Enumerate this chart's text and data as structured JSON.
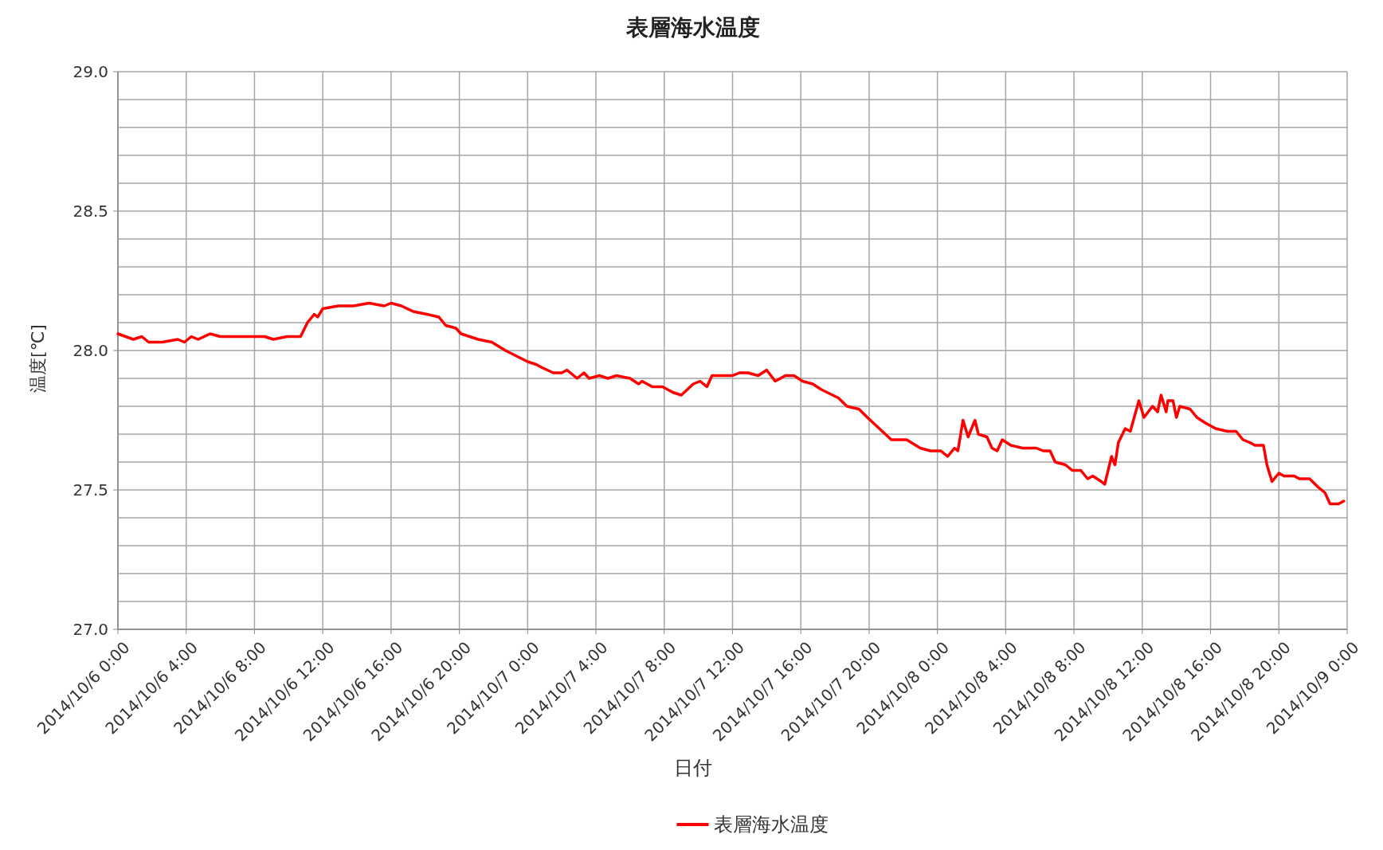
{
  "chart_data": {
    "type": "line",
    "title": "表層海水温度",
    "xlabel": "日付",
    "ylabel": "温度[℃]",
    "legend": "bottom",
    "grid": true,
    "marker": "none",
    "line_style": "solid",
    "xlim": [
      "2014-10-06T00:00",
      "2014-10-09T00:00"
    ],
    "xticks": [
      {
        "value": "2014-10-06T00:00",
        "label": "2014/10/6 0:00"
      },
      {
        "value": "2014-10-06T04:00",
        "label": "2014/10/6 4:00"
      },
      {
        "value": "2014-10-06T08:00",
        "label": "2014/10/6 8:00"
      },
      {
        "value": "2014-10-06T12:00",
        "label": "2014/10/6 12:00"
      },
      {
        "value": "2014-10-06T16:00",
        "label": "2014/10/6 16:00"
      },
      {
        "value": "2014-10-06T20:00",
        "label": "2014/10/6 20:00"
      },
      {
        "value": "2014-10-07T00:00",
        "label": "2014/10/7 0:00"
      },
      {
        "value": "2014-10-07T04:00",
        "label": "2014/10/7 4:00"
      },
      {
        "value": "2014-10-07T08:00",
        "label": "2014/10/7 8:00"
      },
      {
        "value": "2014-10-07T12:00",
        "label": "2014/10/7 12:00"
      },
      {
        "value": "2014-10-07T16:00",
        "label": "2014/10/7 16:00"
      },
      {
        "value": "2014-10-07T20:00",
        "label": "2014/10/7 20:00"
      },
      {
        "value": "2014-10-08T00:00",
        "label": "2014/10/8 0:00"
      },
      {
        "value": "2014-10-08T04:00",
        "label": "2014/10/8 4:00"
      },
      {
        "value": "2014-10-08T08:00",
        "label": "2014/10/8 8:00"
      },
      {
        "value": "2014-10-08T12:00",
        "label": "2014/10/8 12:00"
      },
      {
        "value": "2014-10-08T16:00",
        "label": "2014/10/8 16:00"
      },
      {
        "value": "2014-10-08T20:00",
        "label": "2014/10/8 20:00"
      },
      {
        "value": "2014-10-09T00:00",
        "label": "2014/10/9 0:00"
      }
    ],
    "ylim": [
      27.0,
      29.0
    ],
    "yticks": [
      {
        "value": 27.0,
        "label": "27.0"
      },
      {
        "value": 27.1,
        "label": null
      },
      {
        "value": 27.2,
        "label": null
      },
      {
        "value": 27.3,
        "label": null
      },
      {
        "value": 27.4,
        "label": null
      },
      {
        "value": 27.5,
        "label": "27.5"
      },
      {
        "value": 27.6,
        "label": null
      },
      {
        "value": 27.7,
        "label": null
      },
      {
        "value": 27.8,
        "label": null
      },
      {
        "value": 27.9,
        "label": null
      },
      {
        "value": 28.0,
        "label": "28.0"
      },
      {
        "value": 28.1,
        "label": null
      },
      {
        "value": 28.2,
        "label": null
      },
      {
        "value": 28.3,
        "label": null
      },
      {
        "value": 28.4,
        "label": null
      },
      {
        "value": 28.5,
        "label": "28.5"
      },
      {
        "value": 28.6,
        "label": null
      },
      {
        "value": 28.7,
        "label": null
      },
      {
        "value": 28.8,
        "label": null
      },
      {
        "value": 28.9,
        "label": null
      },
      {
        "value": 29.0,
        "label": "29.0"
      }
    ],
    "x": [
      "2014-10-06T00:00",
      "2014-10-06T00:54",
      "2014-10-06T01:24",
      "2014-10-06T01:48",
      "2014-10-06T02:36",
      "2014-10-06T03:30",
      "2014-10-06T03:54",
      "2014-10-06T04:18",
      "2014-10-06T04:42",
      "2014-10-06T05:24",
      "2014-10-06T06:00",
      "2014-10-06T06:42",
      "2014-10-06T07:18",
      "2014-10-06T07:48",
      "2014-10-06T08:36",
      "2014-10-06T09:06",
      "2014-10-06T09:54",
      "2014-10-06T10:42",
      "2014-10-06T11:06",
      "2014-10-06T11:30",
      "2014-10-06T11:42",
      "2014-10-06T12:00",
      "2014-10-06T12:54",
      "2014-10-06T13:48",
      "2014-10-06T14:42",
      "2014-10-06T15:36",
      "2014-10-06T16:00",
      "2014-10-06T16:36",
      "2014-10-06T17:18",
      "2014-10-06T18:06",
      "2014-10-06T18:48",
      "2014-10-06T19:12",
      "2014-10-06T19:48",
      "2014-10-06T20:06",
      "2014-10-06T21:06",
      "2014-10-06T21:54",
      "2014-10-06T22:42",
      "2014-10-07T00:00",
      "2014-10-07T00:30",
      "2014-10-07T00:48",
      "2014-10-07T01:30",
      "2014-10-07T02:00",
      "2014-10-07T02:18",
      "2014-10-07T02:54",
      "2014-10-07T03:18",
      "2014-10-07T03:36",
      "2014-10-07T04:12",
      "2014-10-07T04:42",
      "2014-10-07T05:12",
      "2014-10-07T06:00",
      "2014-10-07T06:30",
      "2014-10-07T06:42",
      "2014-10-07T07:18",
      "2014-10-07T07:54",
      "2014-10-07T08:30",
      "2014-10-07T09:00",
      "2014-10-07T09:42",
      "2014-10-07T10:06",
      "2014-10-07T10:30",
      "2014-10-07T10:48",
      "2014-10-07T11:24",
      "2014-10-07T12:00",
      "2014-10-07T12:24",
      "2014-10-07T12:54",
      "2014-10-07T13:30",
      "2014-10-07T14:00",
      "2014-10-07T14:30",
      "2014-10-07T15:06",
      "2014-10-07T15:36",
      "2014-10-07T16:06",
      "2014-10-07T16:42",
      "2014-10-07T17:12",
      "2014-10-07T18:12",
      "2014-10-07T18:42",
      "2014-10-07T19:24",
      "2014-10-07T19:54",
      "2014-10-07T20:36",
      "2014-10-07T21:18",
      "2014-10-07T22:12",
      "2014-10-07T23:00",
      "2014-10-07T23:36",
      "2014-10-08T00:12",
      "2014-10-08T00:36",
      "2014-10-08T01:00",
      "2014-10-08T01:12",
      "2014-10-08T01:30",
      "2014-10-08T01:48",
      "2014-10-08T02:12",
      "2014-10-08T02:24",
      "2014-10-08T02:54",
      "2014-10-08T03:12",
      "2014-10-08T03:30",
      "2014-10-08T03:48",
      "2014-10-08T04:18",
      "2014-10-08T05:00",
      "2014-10-08T05:48",
      "2014-10-08T06:12",
      "2014-10-08T06:36",
      "2014-10-08T06:54",
      "2014-10-08T07:30",
      "2014-10-08T07:54",
      "2014-10-08T08:24",
      "2014-10-08T08:48",
      "2014-10-08T09:06",
      "2014-10-08T09:36",
      "2014-10-08T09:48",
      "2014-10-08T10:12",
      "2014-10-08T10:24",
      "2014-10-08T10:36",
      "2014-10-08T11:00",
      "2014-10-08T11:18",
      "2014-10-08T11:48",
      "2014-10-08T12:06",
      "2014-10-08T12:36",
      "2014-10-08T12:54",
      "2014-10-08T13:06",
      "2014-10-08T13:24",
      "2014-10-08T13:30",
      "2014-10-08T13:48",
      "2014-10-08T14:00",
      "2014-10-08T14:12",
      "2014-10-08T14:48",
      "2014-10-08T15:12",
      "2014-10-08T15:42",
      "2014-10-08T16:18",
      "2014-10-08T17:00",
      "2014-10-08T17:30",
      "2014-10-08T17:54",
      "2014-10-08T18:18",
      "2014-10-08T18:36",
      "2014-10-08T19:06",
      "2014-10-08T19:18",
      "2014-10-08T19:36",
      "2014-10-08T20:00",
      "2014-10-08T20:18",
      "2014-10-08T20:54",
      "2014-10-08T21:12",
      "2014-10-08T21:48",
      "2014-10-08T22:18",
      "2014-10-08T22:42",
      "2014-10-08T23:00",
      "2014-10-08T23:30",
      "2014-10-08T23:48"
    ],
    "series": [
      {
        "name": "表層海水温度",
        "color": "#ff0000",
        "values": [
          28.06,
          28.04,
          28.05,
          28.03,
          28.03,
          28.04,
          28.03,
          28.05,
          28.04,
          28.06,
          28.05,
          28.05,
          28.05,
          28.05,
          28.05,
          28.04,
          28.05,
          28.05,
          28.1,
          28.13,
          28.12,
          28.15,
          28.16,
          28.16,
          28.17,
          28.16,
          28.17,
          28.16,
          28.14,
          28.13,
          28.12,
          28.09,
          28.08,
          28.06,
          28.04,
          28.03,
          28.0,
          27.96,
          27.95,
          27.94,
          27.92,
          27.92,
          27.93,
          27.9,
          27.92,
          27.9,
          27.91,
          27.9,
          27.91,
          27.9,
          27.88,
          27.89,
          27.87,
          27.87,
          27.85,
          27.84,
          27.88,
          27.89,
          27.87,
          27.91,
          27.91,
          27.91,
          27.92,
          27.92,
          27.91,
          27.93,
          27.89,
          27.91,
          27.91,
          27.89,
          27.88,
          27.86,
          27.83,
          27.8,
          27.79,
          27.76,
          27.72,
          27.68,
          27.68,
          27.65,
          27.64,
          27.64,
          27.62,
          27.65,
          27.64,
          27.75,
          27.69,
          27.75,
          27.7,
          27.69,
          27.65,
          27.64,
          27.68,
          27.66,
          27.65,
          27.65,
          27.64,
          27.64,
          27.6,
          27.59,
          27.57,
          27.57,
          27.54,
          27.55,
          27.53,
          27.52,
          27.62,
          27.59,
          27.67,
          27.72,
          27.71,
          27.82,
          27.76,
          27.8,
          27.78,
          27.84,
          27.78,
          27.82,
          27.82,
          27.76,
          27.8,
          27.79,
          27.76,
          27.74,
          27.72,
          27.71,
          27.71,
          27.68,
          27.67,
          27.66,
          27.66,
          27.59,
          27.53,
          27.56,
          27.55,
          27.55,
          27.54,
          27.54,
          27.51,
          27.49,
          27.45,
          27.45,
          27.46
        ]
      }
    ]
  }
}
